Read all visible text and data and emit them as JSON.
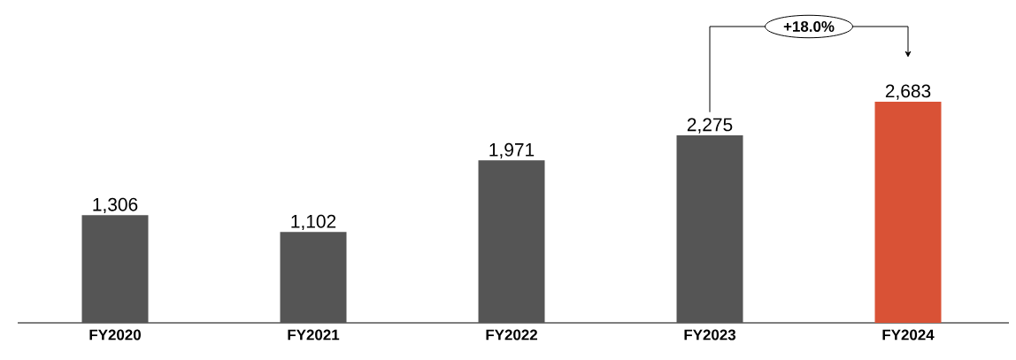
{
  "chart_data": {
    "type": "bar",
    "categories": [
      "FY2020",
      "FY2021",
      "FY2022",
      "FY2023",
      "FY2024"
    ],
    "values": [
      1306,
      1102,
      1971,
      2275,
      2683
    ],
    "colors": [
      "#555555",
      "#555555",
      "#555555",
      "#555555",
      "#d95236"
    ],
    "value_labels": [
      "1,306",
      "1,102",
      "1,971",
      "2,275",
      "2,683"
    ],
    "annotations": [
      "+18.0%"
    ]
  }
}
